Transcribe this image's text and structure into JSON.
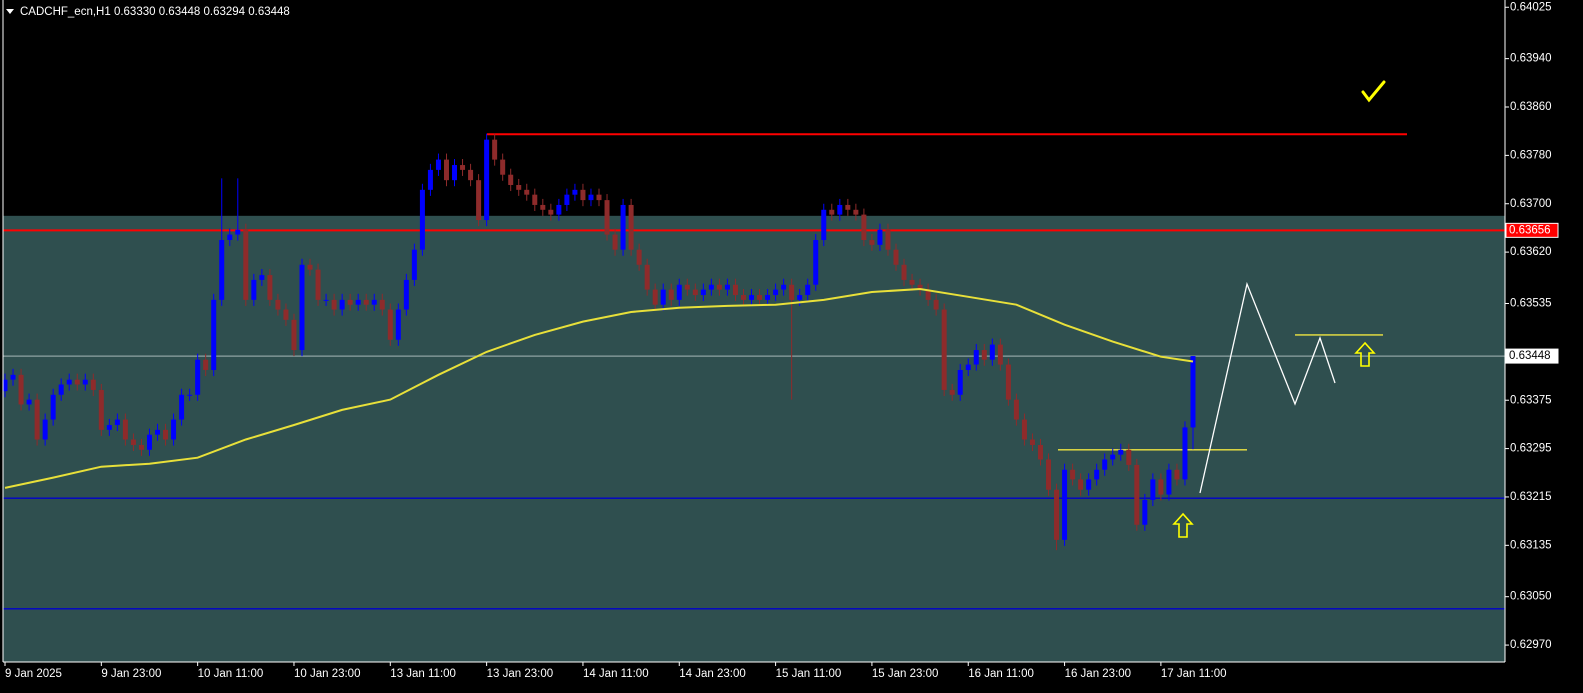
{
  "chart_data": {
    "type": "candlestick",
    "header": "CADCHF_ecn,H1  0.63330 0.63448 0.63294 0.63448",
    "categories": [
      "9 Jan 2025",
      null,
      null,
      null,
      null,
      null,
      null,
      null,
      null,
      null,
      null,
      null,
      "9 Jan 23:00",
      null,
      null,
      null,
      null,
      null,
      null,
      null,
      null,
      null,
      null,
      null,
      "10 Jan 11:00",
      null,
      null,
      null,
      null,
      null,
      null,
      null,
      null,
      null,
      null,
      null,
      "10 Jan 23:00",
      null,
      null,
      null,
      null,
      null,
      null,
      null,
      null,
      null,
      null,
      null,
      "13 Jan 11:00",
      null,
      null,
      null,
      null,
      null,
      null,
      null,
      null,
      null,
      null,
      null,
      "13 Jan 23:00",
      null,
      null,
      null,
      null,
      null,
      null,
      null,
      null,
      null,
      null,
      null,
      "14 Jan 11:00",
      null,
      null,
      null,
      null,
      null,
      null,
      null,
      null,
      null,
      null,
      null,
      "14 Jan 23:00",
      null,
      null,
      null,
      null,
      null,
      null,
      null,
      null,
      null,
      null,
      null,
      "15 Jan 11:00",
      null,
      null,
      null,
      null,
      null,
      null,
      null,
      null,
      null,
      null,
      null,
      "15 Jan 23:00",
      null,
      null,
      null,
      null,
      null,
      null,
      null,
      null,
      null,
      null,
      null,
      "16 Jan 11:00",
      null,
      null,
      null,
      null,
      null,
      null,
      null,
      null,
      null,
      null,
      null,
      "16 Jan 23:00",
      null,
      null,
      null,
      null,
      null,
      null,
      null,
      null,
      null,
      null,
      null,
      "17 Jan 11:00",
      null,
      null,
      null,
      null
    ],
    "open": [
      0.6339,
      0.63409,
      0.63417,
      0.63368,
      0.63376,
      0.6331,
      0.63343,
      0.63384,
      0.63401,
      0.63409,
      0.63401,
      0.63409,
      0.63392,
      0.63326,
      0.63334,
      0.63343,
      0.6331,
      0.63301,
      0.63293,
      0.63318,
      0.63326,
      0.6331,
      0.63343,
      0.63384,
      0.63384,
      0.63442,
      0.63425,
      0.63541,
      0.6364,
      0.63649,
      0.63657,
      0.63541,
      0.63574,
      0.63582,
      0.63541,
      0.63525,
      0.63508,
      0.63458,
      0.63599,
      0.63591,
      0.63541,
      0.63541,
      0.63525,
      0.63541,
      0.63533,
      0.63541,
      0.63533,
      0.63541,
      0.63525,
      0.63475,
      0.63525,
      0.63574,
      0.63624,
      0.63723,
      0.63756,
      0.63773,
      0.63739,
      0.63764,
      0.63756,
      0.63739,
      0.63673,
      0.63806,
      0.63773,
      0.63748,
      0.63731,
      0.63723,
      0.63715,
      0.63698,
      0.6369,
      0.63682,
      0.63698,
      0.63715,
      0.63723,
      0.63706,
      0.63715,
      0.63706,
      0.63649,
      0.63624,
      0.63698,
      0.63624,
      0.63599,
      0.63558,
      0.63533,
      0.63558,
      0.63541,
      0.63566,
      0.63558,
      0.63549,
      0.63558,
      0.63566,
      0.63558,
      0.63566,
      0.63549,
      0.63541,
      0.63549,
      0.63541,
      0.63549,
      0.63558,
      0.63566,
      0.63541,
      0.63549,
      0.63566,
      0.6364,
      0.6369,
      0.63682,
      0.63698,
      0.6369,
      0.63682,
      0.6364,
      0.63632,
      0.63657,
      0.63624,
      0.63599,
      0.63574,
      0.63566,
      0.63558,
      0.63541,
      0.63525,
      0.63392,
      0.63384,
      0.63425,
      0.63434,
      0.63458,
      0.63442,
      0.63467,
      0.63434,
      0.63376,
      0.63343,
      0.6331,
      0.63301,
      0.63277,
      0.63227,
      0.63144,
      0.6326,
      0.63244,
      0.63227,
      0.63244,
      0.6326,
      0.63277,
      0.63285,
      0.63293,
      0.63268,
      0.63169,
      0.6321,
      0.63244,
      0.63219,
      0.6326,
      0.63244,
      0.6333
    ],
    "high": [
      0.63419,
      0.63427,
      0.63427,
      0.63386,
      0.63386,
      0.63353,
      0.63394,
      0.63411,
      0.63419,
      0.63419,
      0.63419,
      0.63419,
      0.63402,
      0.63344,
      0.63353,
      0.63353,
      0.6332,
      0.63311,
      0.63328,
      0.63336,
      0.63336,
      0.63353,
      0.63394,
      0.63394,
      0.63452,
      0.63452,
      0.63551,
      0.63742,
      0.63659,
      0.63742,
      0.63667,
      0.63584,
      0.63592,
      0.63592,
      0.63551,
      0.63535,
      0.63518,
      0.63609,
      0.63609,
      0.63601,
      0.63551,
      0.63551,
      0.63551,
      0.63551,
      0.63551,
      0.63551,
      0.63551,
      0.63551,
      0.63535,
      0.63535,
      0.63584,
      0.63634,
      0.63733,
      0.63766,
      0.63783,
      0.63783,
      0.63774,
      0.63774,
      0.63766,
      0.63749,
      0.63816,
      0.63816,
      0.63783,
      0.63758,
      0.63741,
      0.63733,
      0.63725,
      0.63708,
      0.637,
      0.63708,
      0.63725,
      0.63733,
      0.63733,
      0.63725,
      0.63725,
      0.63716,
      0.63659,
      0.63708,
      0.63708,
      0.63634,
      0.63609,
      0.63568,
      0.63568,
      0.63568,
      0.63576,
      0.63576,
      0.63568,
      0.63568,
      0.63576,
      0.63576,
      0.63576,
      0.63576,
      0.63559,
      0.63559,
      0.63559,
      0.63559,
      0.63568,
      0.63576,
      0.63576,
      0.63559,
      0.63576,
      0.6365,
      0.637,
      0.637,
      0.63708,
      0.63708,
      0.637,
      0.63692,
      0.6365,
      0.63667,
      0.63667,
      0.63634,
      0.63609,
      0.63584,
      0.63576,
      0.63568,
      0.63551,
      0.63535,
      0.63402,
      0.63435,
      0.63444,
      0.63468,
      0.63468,
      0.63477,
      0.63477,
      0.63444,
      0.63386,
      0.63353,
      0.6332,
      0.63311,
      0.63287,
      0.63237,
      0.6327,
      0.6327,
      0.63254,
      0.63254,
      0.6327,
      0.63287,
      0.63295,
      0.63303,
      0.63303,
      0.63278,
      0.6322,
      0.63254,
      0.63254,
      0.6327,
      0.6327,
      0.6334,
      0.63448
    ],
    "low": [
      0.6338,
      0.63399,
      0.63358,
      0.63358,
      0.633,
      0.633,
      0.63333,
      0.63374,
      0.63391,
      0.63391,
      0.63391,
      0.63382,
      0.63316,
      0.63316,
      0.63324,
      0.633,
      0.63291,
      0.63283,
      0.63283,
      0.63308,
      0.633,
      0.633,
      0.63333,
      0.63374,
      0.63374,
      0.63415,
      0.63415,
      0.63531,
      0.6363,
      0.63639,
      0.63531,
      0.63531,
      0.63564,
      0.63531,
      0.63515,
      0.63498,
      0.63448,
      0.63448,
      0.63581,
      0.63531,
      0.63531,
      0.63515,
      0.63515,
      0.63523,
      0.63523,
      0.63523,
      0.63523,
      0.63515,
      0.63465,
      0.63465,
      0.63515,
      0.63564,
      0.63614,
      0.63713,
      0.63746,
      0.63729,
      0.63729,
      0.63746,
      0.63729,
      0.63663,
      0.63663,
      0.63763,
      0.63738,
      0.63721,
      0.63713,
      0.63705,
      0.63688,
      0.6368,
      0.63672,
      0.63672,
      0.63688,
      0.63705,
      0.63696,
      0.63696,
      0.63696,
      0.63639,
      0.63614,
      0.63614,
      0.63614,
      0.63589,
      0.63548,
      0.63523,
      0.63523,
      0.63531,
      0.63531,
      0.63548,
      0.63539,
      0.63539,
      0.63548,
      0.63548,
      0.63548,
      0.63539,
      0.63531,
      0.63531,
      0.63531,
      0.63531,
      0.63539,
      0.63548,
      0.63376,
      0.63531,
      0.63539,
      0.63556,
      0.6363,
      0.63672,
      0.63672,
      0.6368,
      0.63672,
      0.6363,
      0.63622,
      0.63622,
      0.63614,
      0.63589,
      0.63564,
      0.63556,
      0.63548,
      0.63531,
      0.63515,
      0.63382,
      0.63374,
      0.63374,
      0.63415,
      0.63424,
      0.63432,
      0.63432,
      0.63424,
      0.63366,
      0.63333,
      0.633,
      0.63291,
      0.63267,
      0.63217,
      0.63127,
      0.63134,
      0.63234,
      0.63217,
      0.63217,
      0.63234,
      0.6325,
      0.63267,
      0.63275,
      0.63258,
      0.63159,
      0.63159,
      0.632,
      0.63209,
      0.63209,
      0.63234,
      0.63234,
      0.63294
    ],
    "close": [
      0.63409,
      0.63417,
      0.63368,
      0.63376,
      0.6331,
      0.63343,
      0.63384,
      0.63401,
      0.63409,
      0.63401,
      0.63409,
      0.63392,
      0.63326,
      0.63334,
      0.63343,
      0.6331,
      0.63301,
      0.63293,
      0.63318,
      0.63326,
      0.6331,
      0.63343,
      0.63384,
      0.63384,
      0.63442,
      0.63425,
      0.63541,
      0.6364,
      0.63649,
      0.63657,
      0.63541,
      0.63574,
      0.63582,
      0.63541,
      0.63525,
      0.63508,
      0.63458,
      0.63599,
      0.63591,
      0.63541,
      0.63541,
      0.63525,
      0.63541,
      0.63533,
      0.63541,
      0.63533,
      0.63541,
      0.63525,
      0.63475,
      0.63525,
      0.63574,
      0.63624,
      0.63723,
      0.63756,
      0.63773,
      0.63739,
      0.63764,
      0.63756,
      0.63739,
      0.63673,
      0.63806,
      0.63773,
      0.63748,
      0.63731,
      0.63723,
      0.63715,
      0.63698,
      0.6369,
      0.63682,
      0.63698,
      0.63715,
      0.63723,
      0.63706,
      0.63715,
      0.63706,
      0.63649,
      0.63624,
      0.63698,
      0.63624,
      0.63599,
      0.63558,
      0.63533,
      0.63558,
      0.63541,
      0.63566,
      0.63558,
      0.63549,
      0.63558,
      0.63566,
      0.63558,
      0.63566,
      0.63549,
      0.63541,
      0.63549,
      0.63541,
      0.63549,
      0.63558,
      0.63566,
      0.63541,
      0.63549,
      0.63566,
      0.6364,
      0.6369,
      0.63682,
      0.63698,
      0.6369,
      0.63682,
      0.6364,
      0.63632,
      0.63657,
      0.63624,
      0.63599,
      0.63574,
      0.63566,
      0.63558,
      0.63541,
      0.63525,
      0.63392,
      0.63384,
      0.63425,
      0.63434,
      0.63458,
      0.63442,
      0.63467,
      0.63434,
      0.63376,
      0.63343,
      0.6331,
      0.63301,
      0.63277,
      0.63227,
      0.63144,
      0.6326,
      0.63244,
      0.63227,
      0.63244,
      0.6326,
      0.63277,
      0.63285,
      0.63293,
      0.63268,
      0.63169,
      0.6321,
      0.63244,
      0.63219,
      0.6326,
      0.63244,
      0.6333,
      0.63448
    ],
    "up_color": "#0000ff",
    "down_color": "#8e2b2b",
    "moving_average": {
      "color": "#e8e03a",
      "x": [
        0,
        6,
        12,
        18,
        24,
        30,
        36,
        42,
        48,
        54,
        60,
        66,
        72,
        78,
        84,
        90,
        96,
        102,
        108,
        114,
        120,
        126,
        132,
        138,
        144,
        148
      ],
      "values": [
        0.6323,
        0.63247,
        0.63265,
        0.6327,
        0.6328,
        0.6331,
        0.63334,
        0.63359,
        0.63376,
        0.63417,
        0.63455,
        0.63483,
        0.63505,
        0.63521,
        0.63528,
        0.63531,
        0.63533,
        0.63541,
        0.63554,
        0.63559,
        0.63546,
        0.63533,
        0.635,
        0.63472,
        0.63447,
        0.63439
      ]
    },
    "zone": {
      "top": 0.6368,
      "color": "#2f4f4f"
    },
    "levels": [
      {
        "value": 0.63815,
        "color": "#ff0000"
      },
      {
        "value": 0.63656,
        "color": "#ff0000",
        "tagged": true
      },
      {
        "value": 0.63448,
        "color": "#8fa3a3",
        "tagged": true
      },
      {
        "value": 0.63483,
        "color": "#f0e640"
      },
      {
        "value": 0.63293,
        "color": "#f0e640"
      },
      {
        "value": 0.63213,
        "color": "#0000cc"
      },
      {
        "value": 0.6303,
        "color": "#0000cc"
      }
    ],
    "ylim": [
      0.62942,
      0.64037
    ],
    "yticks": [
      0.64025,
      {
        "value": 0.6394,
        "label": "0.63940"
      },
      {
        "value": 0.6386,
        "label": "0.63860"
      },
      {
        "value": 0.6378,
        "label": "0.63780"
      },
      {
        "value": 0.637,
        "label": "0.63700"
      },
      {
        "value": 0.6362,
        "label": "0.63620"
      },
      0.63535,
      0.63375,
      0.63295,
      0.63215,
      0.63135,
      {
        "value": 0.6305,
        "label": "0.63050"
      },
      {
        "value": 0.6297,
        "label": "0.62970"
      }
    ]
  }
}
